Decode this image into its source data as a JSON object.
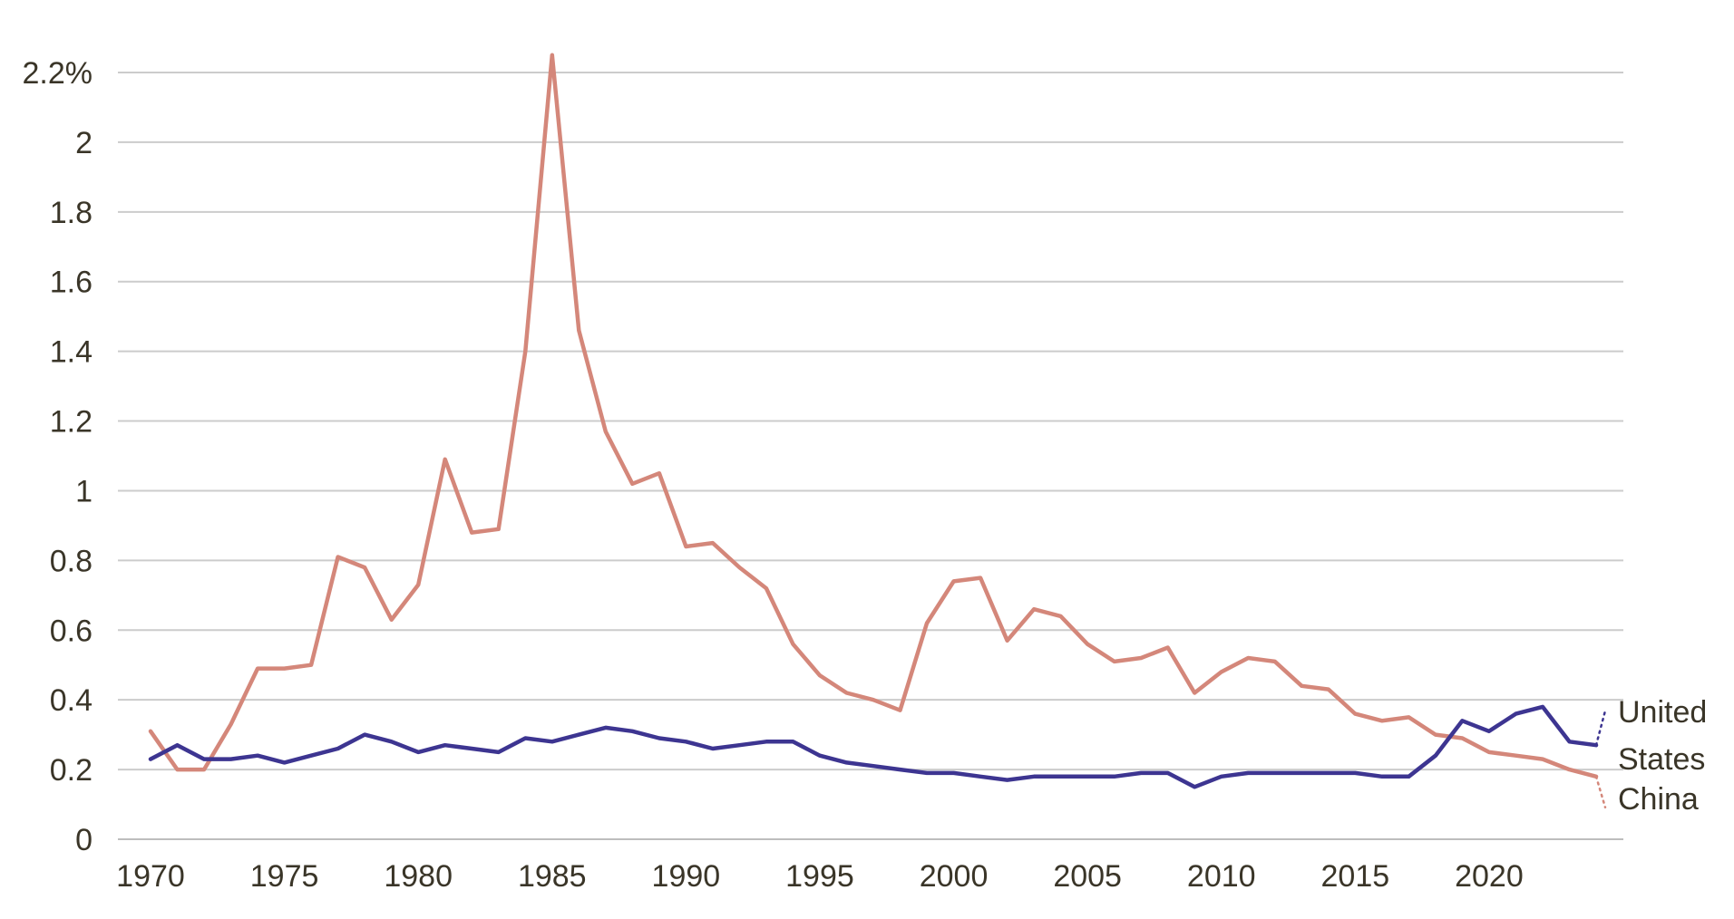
{
  "chart_data": {
    "type": "line",
    "title": "",
    "xlabel": "",
    "ylabel": "",
    "xlim": [
      1970,
      2024
    ],
    "ylim": [
      0,
      2.2
    ],
    "grid": true,
    "legend": "direct labels at line ends (right)",
    "x_ticks": [
      1970,
      1975,
      1980,
      1985,
      1990,
      1995,
      2000,
      2005,
      2010,
      2015,
      2020
    ],
    "x_tick_labels": [
      "1970",
      "1975",
      "1980",
      "1985",
      "1990",
      "1995",
      "2000",
      "2005",
      "2010",
      "2015",
      "2020"
    ],
    "y_ticks": [
      0,
      0.2,
      0.4,
      0.6,
      0.8,
      1,
      1.2,
      1.4,
      1.6,
      1.8,
      2,
      2.2
    ],
    "y_tick_labels": [
      "0",
      "0.2",
      "0.4",
      "0.6",
      "0.8",
      "1",
      "1.2",
      "1.4",
      "1.6",
      "1.8",
      "2",
      "2.2%"
    ],
    "x": [
      1970,
      1971,
      1972,
      1973,
      1974,
      1975,
      1976,
      1977,
      1978,
      1979,
      1980,
      1981,
      1982,
      1983,
      1984,
      1985,
      1986,
      1987,
      1988,
      1989,
      1990,
      1991,
      1992,
      1993,
      1994,
      1995,
      1996,
      1997,
      1998,
      1999,
      2000,
      2001,
      2002,
      2003,
      2004,
      2005,
      2006,
      2007,
      2008,
      2009,
      2010,
      2011,
      2012,
      2013,
      2014,
      2015,
      2016,
      2017,
      2018,
      2019,
      2020,
      2021,
      2022,
      2023,
      2024
    ],
    "series": [
      {
        "name": "China",
        "label_lines": [
          "China"
        ],
        "color": "#d4877a",
        "values": [
          0.31,
          0.2,
          0.2,
          0.33,
          0.49,
          0.49,
          0.5,
          0.81,
          0.78,
          0.63,
          0.73,
          1.09,
          0.88,
          0.89,
          1.4,
          2.25,
          1.46,
          1.17,
          1.02,
          1.05,
          0.84,
          0.85,
          0.78,
          0.72,
          0.56,
          0.47,
          0.42,
          0.4,
          0.37,
          0.62,
          0.74,
          0.75,
          0.57,
          0.66,
          0.64,
          0.56,
          0.51,
          0.52,
          0.55,
          0.42,
          0.48,
          0.52,
          0.51,
          0.44,
          0.43,
          0.36,
          0.34,
          0.35,
          0.3,
          0.29,
          0.25,
          0.24,
          0.23,
          0.2,
          0.18
        ],
        "last_solid_year": 2024
      },
      {
        "name": "United States",
        "label_lines": [
          "United",
          "States"
        ],
        "color": "#3d3591",
        "values": [
          0.23,
          0.27,
          0.23,
          0.23,
          0.24,
          0.22,
          0.24,
          0.26,
          0.3,
          0.28,
          0.25,
          0.27,
          0.26,
          0.25,
          0.29,
          0.28,
          0.3,
          0.32,
          0.31,
          0.29,
          0.28,
          0.26,
          0.27,
          0.28,
          0.28,
          0.24,
          0.22,
          0.21,
          0.2,
          0.19,
          0.19,
          0.18,
          0.17,
          0.18,
          0.18,
          0.18,
          0.18,
          0.19,
          0.19,
          0.15,
          0.18,
          0.19,
          0.19,
          0.19,
          0.19,
          0.19,
          0.18,
          0.18,
          0.24,
          0.34,
          0.31,
          0.36,
          0.38,
          0.28,
          0.27
        ],
        "last_solid_year": 2024
      }
    ]
  }
}
